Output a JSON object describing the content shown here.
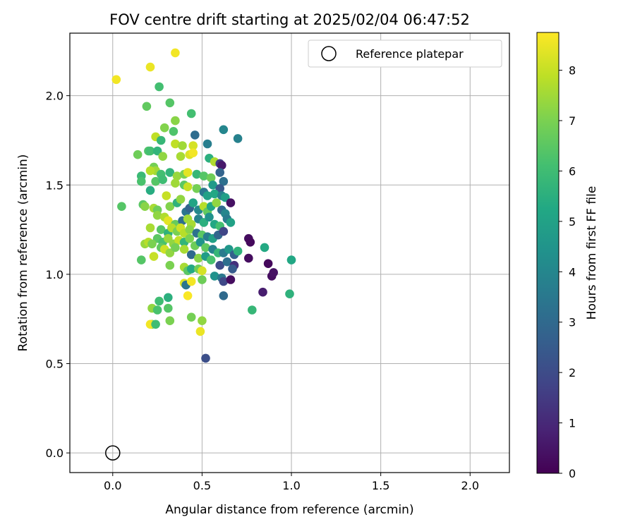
{
  "chart_data": {
    "type": "scatter",
    "title": "FOV centre drift starting at 2025/02/04 06:47:52",
    "xlabel": "Angular distance from reference (arcmin)",
    "ylabel": "Rotation from reference (arcmin)",
    "xlim": [
      -0.24,
      2.22
    ],
    "ylim": [
      -0.11,
      2.35
    ],
    "xticks": [
      0.0,
      0.5,
      1.0,
      1.5,
      2.0
    ],
    "xtick_labels": [
      "0.0",
      "0.5",
      "1.0",
      "1.5",
      "2.0"
    ],
    "yticks": [
      0.0,
      0.5,
      1.0,
      1.5,
      2.0
    ],
    "ytick_labels": [
      "0.0",
      "0.5",
      "1.0",
      "1.5",
      "2.0"
    ],
    "grid": true,
    "legend": {
      "position": "top-right",
      "entries": [
        "Reference platepar"
      ]
    },
    "colorbar": {
      "label": "Hours from first FF file",
      "colormap": "viridis",
      "range": [
        0,
        8.75
      ],
      "ticks": [
        0,
        1,
        2,
        3,
        4,
        5,
        6,
        7,
        8
      ],
      "tick_labels": [
        "0",
        "1",
        "2",
        "3",
        "4",
        "5",
        "6",
        "7",
        "8"
      ]
    },
    "reference": {
      "name": "Reference platepar",
      "x": 0.0,
      "y": 0.0
    },
    "points": [
      [
        0.02,
        2.09,
        8.6
      ],
      [
        0.21,
        2.16,
        8.5
      ],
      [
        0.35,
        2.24,
        8.6
      ],
      [
        0.26,
        2.05,
        6.1
      ],
      [
        0.19,
        1.94,
        6.6
      ],
      [
        0.32,
        1.96,
        6.4
      ],
      [
        0.44,
        1.9,
        6.1
      ],
      [
        0.35,
        1.86,
        7.2
      ],
      [
        0.34,
        1.8,
        6.3
      ],
      [
        0.29,
        1.82,
        7.1
      ],
      [
        0.24,
        1.77,
        7.9
      ],
      [
        0.46,
        1.78,
        3.1
      ],
      [
        0.62,
        1.81,
        4.0
      ],
      [
        0.7,
        1.76,
        3.8
      ],
      [
        0.27,
        1.75,
        5.8
      ],
      [
        0.35,
        1.73,
        7.9
      ],
      [
        0.39,
        1.72,
        7.5
      ],
      [
        0.45,
        1.72,
        8.2
      ],
      [
        0.53,
        1.73,
        3.7
      ],
      [
        0.14,
        1.67,
        6.8
      ],
      [
        0.2,
        1.69,
        6.3
      ],
      [
        0.21,
        1.69,
        6.1
      ],
      [
        0.25,
        1.69,
        5.7
      ],
      [
        0.28,
        1.66,
        7.3
      ],
      [
        0.38,
        1.66,
        7.6
      ],
      [
        0.43,
        1.67,
        8.3
      ],
      [
        0.45,
        1.68,
        8.6
      ],
      [
        0.54,
        1.65,
        5.5
      ],
      [
        0.57,
        1.63,
        7.7
      ],
      [
        0.6,
        1.62,
        1.5
      ],
      [
        0.61,
        1.61,
        0.6
      ],
      [
        0.16,
        1.55,
        5.9
      ],
      [
        0.23,
        1.6,
        6.9
      ],
      [
        0.24,
        1.58,
        7.5
      ],
      [
        0.21,
        1.58,
        7.8
      ],
      [
        0.27,
        1.56,
        6.1
      ],
      [
        0.32,
        1.57,
        5.7
      ],
      [
        0.36,
        1.55,
        7.4
      ],
      [
        0.4,
        1.56,
        7.0
      ],
      [
        0.42,
        1.57,
        8.4
      ],
      [
        0.47,
        1.56,
        5.8
      ],
      [
        0.51,
        1.55,
        6.4
      ],
      [
        0.55,
        1.54,
        6.8
      ],
      [
        0.6,
        1.57,
        2.8
      ],
      [
        0.62,
        1.52,
        3.2
      ],
      [
        0.56,
        1.5,
        4.7
      ],
      [
        0.6,
        1.48,
        2.4
      ],
      [
        0.16,
        1.52,
        6.2
      ],
      [
        0.21,
        1.47,
        5.4
      ],
      [
        0.24,
        1.52,
        6.4
      ],
      [
        0.28,
        1.53,
        6.0
      ],
      [
        0.35,
        1.51,
        7.5
      ],
      [
        0.4,
        1.5,
        6.5
      ],
      [
        0.42,
        1.49,
        8.0
      ],
      [
        0.47,
        1.48,
        6.9
      ],
      [
        0.51,
        1.46,
        3.5
      ],
      [
        0.53,
        1.44,
        5.0
      ],
      [
        0.57,
        1.45,
        5.2
      ],
      [
        0.61,
        1.44,
        3.8
      ],
      [
        0.63,
        1.43,
        4.9
      ],
      [
        0.66,
        1.4,
        0.4
      ],
      [
        0.05,
        1.38,
        6.4
      ],
      [
        0.17,
        1.39,
        6.5
      ],
      [
        0.18,
        1.38,
        7.2
      ],
      [
        0.23,
        1.37,
        7.6
      ],
      [
        0.25,
        1.36,
        6.8
      ],
      [
        0.3,
        1.44,
        8.0
      ],
      [
        0.32,
        1.38,
        7.1
      ],
      [
        0.36,
        1.4,
        5.6
      ],
      [
        0.38,
        1.42,
        7.3
      ],
      [
        0.41,
        1.35,
        3.4
      ],
      [
        0.43,
        1.37,
        2.8
      ],
      [
        0.45,
        1.4,
        5.1
      ],
      [
        0.48,
        1.36,
        4.1
      ],
      [
        0.51,
        1.38,
        7.8
      ],
      [
        0.53,
        1.35,
        6.6
      ],
      [
        0.55,
        1.38,
        5.2
      ],
      [
        0.58,
        1.4,
        7.3
      ],
      [
        0.61,
        1.36,
        3.0
      ],
      [
        0.63,
        1.34,
        4.0
      ],
      [
        0.25,
        1.33,
        7.3
      ],
      [
        0.29,
        1.32,
        7.7
      ],
      [
        0.31,
        1.3,
        8.4
      ],
      [
        0.35,
        1.28,
        6.7
      ],
      [
        0.39,
        1.3,
        3.2
      ],
      [
        0.42,
        1.31,
        7.5
      ],
      [
        0.44,
        1.28,
        7.6
      ],
      [
        0.48,
        1.31,
        3.9
      ],
      [
        0.51,
        1.29,
        5.5
      ],
      [
        0.54,
        1.32,
        4.4
      ],
      [
        0.57,
        1.28,
        5.2
      ],
      [
        0.6,
        1.27,
        6.1
      ],
      [
        0.64,
        1.31,
        3.6
      ],
      [
        0.66,
        1.29,
        5.0
      ],
      [
        0.21,
        1.26,
        7.6
      ],
      [
        0.27,
        1.25,
        6.4
      ],
      [
        0.31,
        1.23,
        5.6
      ],
      [
        0.33,
        1.26,
        7.8
      ],
      [
        0.36,
        1.24,
        7.0
      ],
      [
        0.38,
        1.26,
        8.1
      ],
      [
        0.4,
        1.23,
        7.8
      ],
      [
        0.43,
        1.25,
        7.2
      ],
      [
        0.47,
        1.23,
        3.3
      ],
      [
        0.5,
        1.22,
        6.5
      ],
      [
        0.53,
        1.21,
        3.7
      ],
      [
        0.56,
        1.2,
        5.0
      ],
      [
        0.59,
        1.22,
        2.9
      ],
      [
        0.62,
        1.24,
        1.8
      ],
      [
        0.25,
        1.2,
        6.5
      ],
      [
        0.28,
        1.18,
        6.2
      ],
      [
        0.31,
        1.2,
        7.4
      ],
      [
        0.34,
        1.17,
        7.3
      ],
      [
        0.37,
        1.19,
        8.0
      ],
      [
        0.4,
        1.18,
        5.7
      ],
      [
        0.43,
        1.2,
        7.0
      ],
      [
        0.46,
        1.16,
        6.8
      ],
      [
        0.49,
        1.18,
        4.5
      ],
      [
        0.52,
        1.15,
        6.6
      ],
      [
        0.56,
        1.14,
        3.9
      ],
      [
        0.59,
        1.12,
        5.8
      ],
      [
        0.62,
        1.12,
        3.6
      ],
      [
        0.65,
        1.14,
        4.6
      ],
      [
        0.68,
        1.11,
        2.7
      ],
      [
        0.7,
        1.13,
        5.6
      ],
      [
        0.76,
        1.2,
        0.3
      ],
      [
        0.77,
        1.18,
        0.2
      ],
      [
        0.18,
        1.17,
        7.4
      ],
      [
        0.2,
        1.18,
        7.8
      ],
      [
        0.22,
        1.17,
        7.0
      ],
      [
        0.27,
        1.15,
        6.6
      ],
      [
        0.29,
        1.14,
        8.1
      ],
      [
        0.32,
        1.12,
        7.3
      ],
      [
        0.35,
        1.15,
        6.9
      ],
      [
        0.4,
        1.14,
        7.6
      ],
      [
        0.44,
        1.11,
        3.0
      ],
      [
        0.48,
        1.09,
        7.2
      ],
      [
        0.52,
        1.1,
        4.8
      ],
      [
        0.55,
        1.08,
        6.2
      ],
      [
        0.6,
        1.05,
        2.0
      ],
      [
        0.64,
        1.07,
        3.2
      ],
      [
        0.68,
        1.05,
        1.2
      ],
      [
        0.76,
        1.09,
        0.3
      ],
      [
        0.85,
        1.15,
        5.3
      ],
      [
        0.87,
        1.06,
        0.2
      ],
      [
        1.0,
        1.08,
        5.2
      ],
      [
        0.16,
        1.08,
        6.4
      ],
      [
        0.23,
        1.1,
        8.0
      ],
      [
        0.32,
        1.05,
        7.0
      ],
      [
        0.4,
        1.04,
        7.6
      ],
      [
        0.42,
        1.02,
        6.5
      ],
      [
        0.44,
        1.03,
        5.3
      ],
      [
        0.48,
        1.03,
        6.8
      ],
      [
        0.5,
        1.02,
        8.2
      ],
      [
        0.57,
        0.99,
        4.4
      ],
      [
        0.61,
        0.98,
        3.5
      ],
      [
        0.62,
        0.96,
        1.9
      ],
      [
        0.66,
        0.97,
        0.3
      ],
      [
        0.67,
        1.03,
        2.5
      ],
      [
        0.89,
        0.99,
        0.3
      ],
      [
        0.9,
        1.01,
        0.4
      ],
      [
        0.4,
        0.95,
        8.3
      ],
      [
        0.41,
        0.94,
        3.4
      ],
      [
        0.44,
        0.96,
        8.6
      ],
      [
        0.5,
        0.97,
        6.8
      ],
      [
        0.42,
        0.88,
        8.7
      ],
      [
        0.62,
        0.88,
        3.0
      ],
      [
        0.84,
        0.9,
        0.7
      ],
      [
        0.99,
        0.89,
        5.6
      ],
      [
        0.31,
        0.87,
        5.5
      ],
      [
        0.26,
        0.85,
        6.0
      ],
      [
        0.22,
        0.81,
        7.3
      ],
      [
        0.25,
        0.8,
        6.2
      ],
      [
        0.31,
        0.81,
        6.4
      ],
      [
        0.78,
        0.8,
        5.8
      ],
      [
        0.44,
        0.76,
        6.9
      ],
      [
        0.22,
        0.72,
        7.0
      ],
      [
        0.21,
        0.72,
        8.6
      ],
      [
        0.24,
        0.72,
        6.0
      ],
      [
        0.32,
        0.74,
        7.0
      ],
      [
        0.5,
        0.74,
        7.3
      ],
      [
        0.49,
        0.68,
        8.5
      ],
      [
        0.52,
        0.53,
        2.1
      ]
    ]
  }
}
